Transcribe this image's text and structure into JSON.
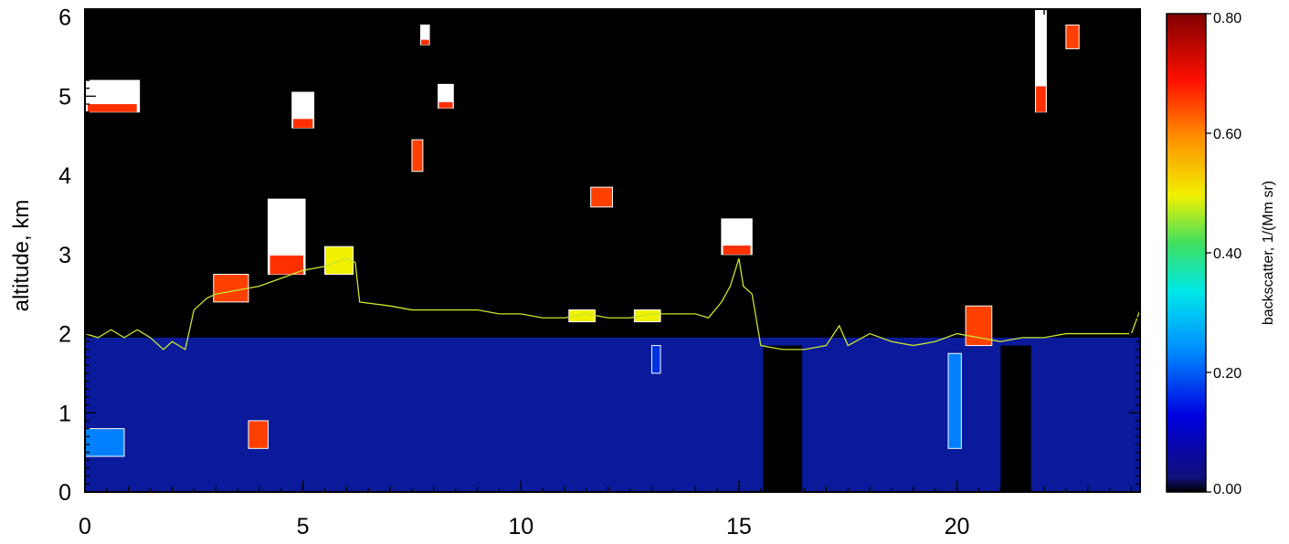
{
  "chart_data": {
    "type": "heatmap",
    "title": "",
    "xlabel": "",
    "ylabel": "altitude, km",
    "xlim": [
      0,
      24.2
    ],
    "ylim": [
      0,
      6.1
    ],
    "x_ticks": [
      0,
      5,
      10,
      15,
      20
    ],
    "x_tick_labels": [
      "0",
      "5",
      "10",
      "15",
      "20"
    ],
    "y_ticks": [
      0,
      1,
      2,
      3,
      4,
      5,
      6
    ],
    "y_tick_labels": [
      "0",
      "1",
      "2",
      "3",
      "4",
      "5",
      "6"
    ],
    "colorbar": {
      "label": "backscatter, 1/(Mm sr)",
      "range": [
        0,
        0.8
      ],
      "ticks": [
        0,
        0.2,
        0.4,
        0.6,
        0.8
      ],
      "tick_labels": [
        "0.00",
        "0.20",
        "0.40",
        "0.60",
        "0.80"
      ],
      "colormap": "rainbow"
    },
    "background_color": "#000000",
    "boundary_layer_color": "#0a1a9a",
    "gap_intervals_x": [
      [
        15.55,
        16.45
      ],
      [
        21.0,
        21.7
      ]
    ],
    "boundary_layer_top_km": [
      [
        0,
        1.95
      ],
      [
        2,
        1.95
      ],
      [
        4,
        1.95
      ],
      [
        6,
        1.95
      ],
      [
        8,
        1.95
      ],
      [
        10,
        1.95
      ],
      [
        12,
        1.95
      ],
      [
        14,
        1.95
      ],
      [
        15.55,
        1.95
      ],
      [
        16.45,
        1.95
      ],
      [
        18,
        1.95
      ],
      [
        20,
        1.95
      ],
      [
        21,
        1.95
      ],
      [
        21.7,
        1.95
      ],
      [
        24.2,
        1.95
      ]
    ],
    "series": [
      {
        "name": "",
        "color": "#c8e632",
        "x": [
          0,
          0.3,
          0.6,
          0.9,
          1.2,
          1.5,
          1.8,
          2.0,
          2.3,
          2.5,
          2.8,
          3.0,
          3.5,
          4.0,
          4.5,
          5.0,
          5.5,
          6.0,
          6.2,
          6.3,
          7.0,
          7.5,
          8.0,
          8.5,
          9.0,
          9.5,
          10.0,
          10.5,
          11.0,
          11.5,
          12.0,
          12.5,
          13.0,
          13.5,
          14.0,
          14.3,
          14.6,
          14.8,
          15.0,
          15.1,
          15.3,
          15.5,
          16.0,
          16.5,
          17.0,
          17.3,
          17.5,
          18.0,
          18.5,
          19.0,
          19.5,
          20.0,
          20.5,
          21.0,
          21.5,
          22.0,
          22.5,
          23.0,
          23.5,
          24.0,
          24.2
        ],
        "y": [
          2.0,
          1.95,
          2.05,
          1.95,
          2.05,
          1.95,
          1.8,
          1.9,
          1.8,
          2.3,
          2.45,
          2.5,
          2.55,
          2.6,
          2.7,
          2.8,
          2.85,
          2.95,
          2.9,
          2.4,
          2.35,
          2.3,
          2.3,
          2.3,
          2.3,
          2.25,
          2.25,
          2.2,
          2.2,
          2.25,
          2.2,
          2.2,
          2.25,
          2.25,
          2.25,
          2.2,
          2.4,
          2.6,
          2.95,
          2.6,
          2.5,
          1.85,
          1.8,
          1.8,
          1.85,
          2.1,
          1.85,
          2.0,
          1.9,
          1.85,
          1.9,
          2.0,
          1.95,
          1.9,
          1.95,
          1.95,
          2.0,
          2.0,
          2.0,
          2.0,
          2.3
        ]
      }
    ],
    "aerosol_patches": [
      {
        "x": 0.0,
        "w": 1.25,
        "y": 4.8,
        "h": 0.4,
        "peak": 1.0
      },
      {
        "x": 4.75,
        "w": 0.5,
        "y": 4.6,
        "h": 0.45,
        "peak": 1.0
      },
      {
        "x": 7.7,
        "w": 0.2,
        "y": 5.65,
        "h": 0.25,
        "peak": 1.0
      },
      {
        "x": 8.1,
        "w": 0.35,
        "y": 4.85,
        "h": 0.3,
        "peak": 1.0
      },
      {
        "x": 7.5,
        "w": 0.25,
        "y": 4.05,
        "h": 0.4,
        "peak": 0.9
      },
      {
        "x": 4.2,
        "w": 0.85,
        "y": 2.75,
        "h": 0.95,
        "peak": 1.0
      },
      {
        "x": 2.95,
        "w": 0.8,
        "y": 2.4,
        "h": 0.35,
        "peak": 0.95
      },
      {
        "x": 5.5,
        "w": 0.65,
        "y": 2.75,
        "h": 0.35,
        "peak": 0.8
      },
      {
        "x": 11.6,
        "w": 0.5,
        "y": 3.6,
        "h": 0.25,
        "peak": 0.95
      },
      {
        "x": 14.6,
        "w": 0.7,
        "y": 3.0,
        "h": 0.45,
        "peak": 1.0
      },
      {
        "x": 11.1,
        "w": 0.6,
        "y": 2.15,
        "h": 0.15,
        "peak": 0.7
      },
      {
        "x": 12.6,
        "w": 0.6,
        "y": 2.15,
        "h": 0.15,
        "peak": 0.7
      },
      {
        "x": 3.75,
        "w": 0.45,
        "y": 0.55,
        "h": 0.35,
        "peak": 0.85
      },
      {
        "x": 20.2,
        "w": 0.6,
        "y": 1.85,
        "h": 0.5,
        "peak": 0.85
      },
      {
        "x": 21.8,
        "w": 0.25,
        "y": 4.8,
        "h": 1.3,
        "peak": 1.0
      },
      {
        "x": 22.5,
        "w": 0.3,
        "y": 5.6,
        "h": 0.3,
        "peak": 0.95
      },
      {
        "x": 0.0,
        "w": 0.9,
        "y": 0.45,
        "h": 0.35,
        "peak": 0.25
      },
      {
        "x": 13.0,
        "w": 0.2,
        "y": 1.5,
        "h": 0.35,
        "peak": 0.2
      },
      {
        "x": 19.8,
        "w": 0.3,
        "y": 0.55,
        "h": 1.2,
        "peak": 0.25
      }
    ]
  }
}
